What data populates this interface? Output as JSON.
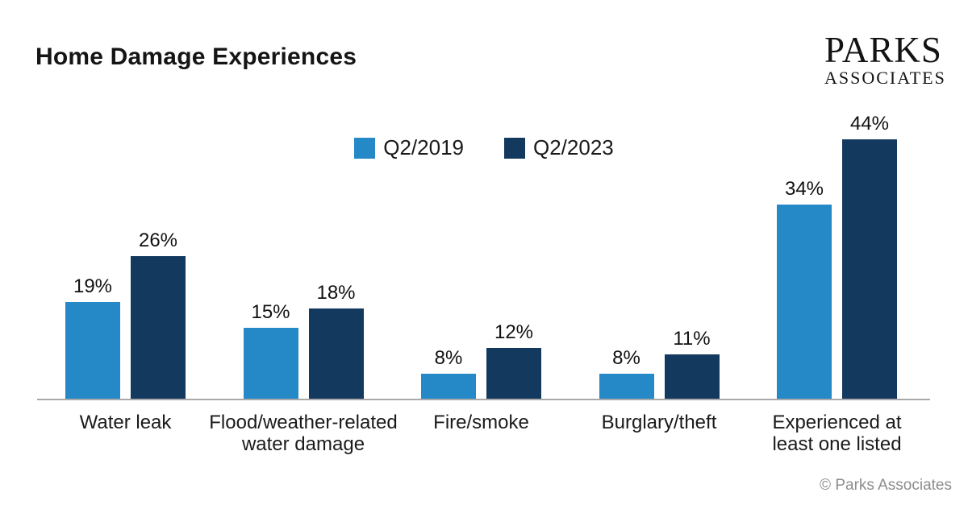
{
  "title": "Home Damage Experiences",
  "logo": {
    "line1": "PARKS",
    "line2": "ASSOCIATES"
  },
  "footer": {
    "copyright": "© Parks Associates"
  },
  "colors": {
    "series_2019": "#2589C8",
    "series_2023": "#133A5E",
    "axis_line": "#A9A9A9",
    "text": "#1A1A1A",
    "muted_text": "#8C8C8C"
  },
  "chart_data": {
    "type": "bar",
    "title": "Home Damage Experiences",
    "categories": [
      "Water leak",
      "Flood/weather-related\nwater damage",
      "Fire/smoke",
      "Burglary/theft",
      "Experienced at\nleast one listed"
    ],
    "series": [
      {
        "name": "Q2/2019",
        "color": "#2589C8",
        "values": [
          19,
          15,
          8,
          8,
          34
        ]
      },
      {
        "name": "Q2/2023",
        "color": "#133A5E",
        "values": [
          26,
          18,
          12,
          11,
          44
        ]
      }
    ],
    "value_suffix": "%",
    "xlabel": "",
    "ylabel": "",
    "grid": false,
    "data_labels": true,
    "legend_position": "top-center"
  }
}
